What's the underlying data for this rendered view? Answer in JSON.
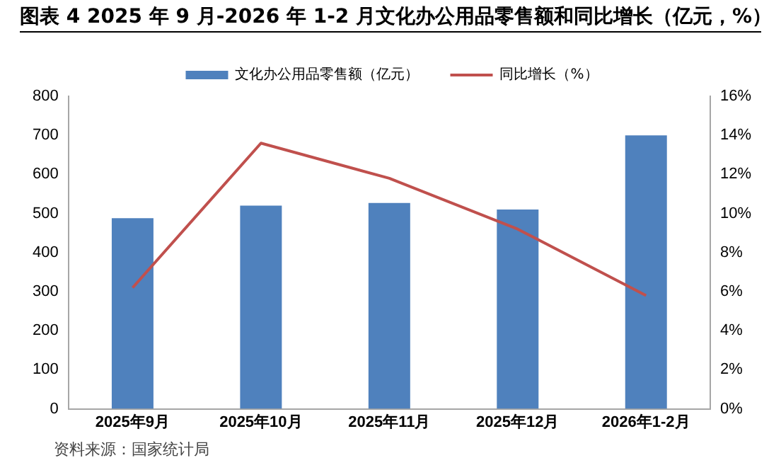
{
  "chart_data": {
    "type": "bar",
    "title": "图表 4 2025 年 9 月-2026 年 1-2 月文化办公用品零售额和同比增长（亿元，%）",
    "categories": [
      "2025年9月",
      "2025年10月",
      "2025年11月",
      "2025年12月",
      "2026年1-2月"
    ],
    "series": [
      {
        "name": "文化办公用品零售额（亿元）",
        "color": "#4f81bd",
        "values": [
          488,
          520,
          527,
          510,
          700
        ]
      },
      {
        "name": "同比增长（%）",
        "type": "line",
        "axis": "y2",
        "color": "#c0504d",
        "marker": "none",
        "values": [
          6.2,
          13.6,
          11.8,
          9.2,
          5.8
        ]
      }
    ],
    "ylim": [
      0,
      800
    ],
    "yticks": [
      0,
      100,
      200,
      300,
      400,
      500,
      600,
      700,
      800
    ],
    "y2lim": [
      0,
      16
    ],
    "y2ticks": [
      {
        "value": 0,
        "label": "0%"
      },
      {
        "value": 2,
        "label": "2%"
      },
      {
        "value": 4,
        "label": "4%"
      },
      {
        "value": 6,
        "label": "6%"
      },
      {
        "value": 8,
        "label": "8%"
      },
      {
        "value": 10,
        "label": "10%"
      },
      {
        "value": 12,
        "label": "12%"
      },
      {
        "value": 14,
        "label": "14%"
      },
      {
        "value": 16,
        "label": "16%"
      }
    ],
    "grid": false,
    "legend": "top",
    "annotations": [
      "资料来源：国家统计局"
    ]
  }
}
